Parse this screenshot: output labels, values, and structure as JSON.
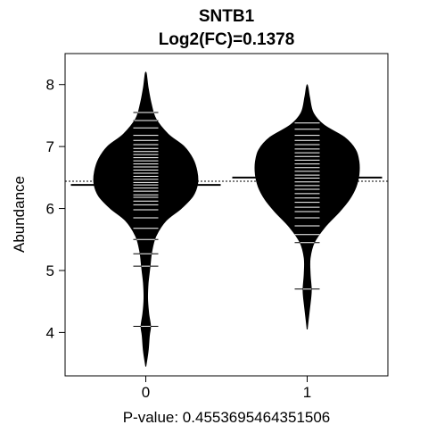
{
  "chart_data": {
    "type": "beanplot",
    "title": "SNTB1",
    "subtitle": "Log2(FC)=0.1378",
    "xlabel": "P-value: 0.4553695464351506",
    "ylabel": "Abundance",
    "ylim": [
      3.3,
      8.5
    ],
    "yticks": [
      4,
      5,
      6,
      7,
      8
    ],
    "categories": [
      "0",
      "1"
    ],
    "overall_mean": 6.44,
    "grid": false,
    "groups": [
      {
        "name": "0",
        "mean": 6.38,
        "range": [
          3.45,
          8.2
        ],
        "density": [
          [
            3.45,
            0.0
          ],
          [
            3.7,
            0.04
          ],
          [
            3.95,
            0.06
          ],
          [
            4.1,
            0.08
          ],
          [
            4.3,
            0.05
          ],
          [
            4.55,
            0.03
          ],
          [
            4.8,
            0.04
          ],
          [
            5.05,
            0.07
          ],
          [
            5.3,
            0.1
          ],
          [
            5.55,
            0.17
          ],
          [
            5.8,
            0.34
          ],
          [
            6.0,
            0.6
          ],
          [
            6.2,
            0.8
          ],
          [
            6.4,
            0.88
          ],
          [
            6.6,
            0.87
          ],
          [
            6.8,
            0.8
          ],
          [
            7.0,
            0.65
          ],
          [
            7.2,
            0.38
          ],
          [
            7.45,
            0.17
          ],
          [
            7.7,
            0.09
          ],
          [
            7.95,
            0.04
          ],
          [
            8.2,
            0.0
          ]
        ],
        "points": [
          4.1,
          5.07,
          5.27,
          5.5,
          5.68,
          5.85,
          5.98,
          6.06,
          6.12,
          6.18,
          6.22,
          6.28,
          6.33,
          6.38,
          6.42,
          6.47,
          6.52,
          6.57,
          6.62,
          6.67,
          6.72,
          6.77,
          6.82,
          6.87,
          6.92,
          6.97,
          7.03,
          7.1,
          7.18,
          7.3,
          7.42,
          7.55
        ]
      },
      {
        "name": "1",
        "mean": 6.5,
        "range": [
          4.05,
          8.0
        ],
        "density": [
          [
            4.05,
            0.0
          ],
          [
            4.3,
            0.03
          ],
          [
            4.55,
            0.06
          ],
          [
            4.7,
            0.07
          ],
          [
            4.95,
            0.05
          ],
          [
            5.2,
            0.05
          ],
          [
            5.45,
            0.12
          ],
          [
            5.7,
            0.3
          ],
          [
            5.95,
            0.55
          ],
          [
            6.15,
            0.72
          ],
          [
            6.35,
            0.83
          ],
          [
            6.55,
            0.88
          ],
          [
            6.75,
            0.88
          ],
          [
            6.95,
            0.82
          ],
          [
            7.15,
            0.63
          ],
          [
            7.35,
            0.28
          ],
          [
            7.55,
            0.1
          ],
          [
            7.8,
            0.04
          ],
          [
            8.0,
            0.0
          ]
        ],
        "points": [
          4.7,
          5.45,
          5.58,
          5.72,
          5.85,
          5.95,
          6.02,
          6.1,
          6.17,
          6.24,
          6.31,
          6.37,
          6.43,
          6.49,
          6.54,
          6.6,
          6.66,
          6.72,
          6.78,
          6.84,
          6.9,
          6.96,
          7.03,
          7.1,
          7.18,
          7.28,
          7.38
        ]
      }
    ]
  }
}
